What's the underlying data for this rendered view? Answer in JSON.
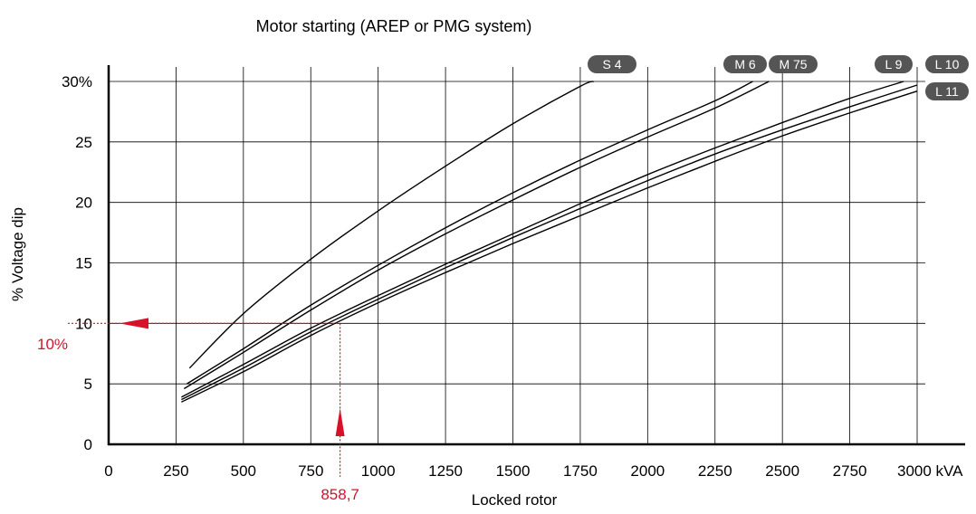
{
  "chart_data": {
    "type": "line",
    "title": "Motor starting (AREP or PMG system)",
    "xlabel": "Locked rotor",
    "ylabel": "% Voltage dip",
    "x_unit": "kVA",
    "xlim": [
      0,
      3000
    ],
    "ylim": [
      0,
      30
    ],
    "x_ticks": [
      0,
      250,
      500,
      750,
      1000,
      1250,
      1500,
      1750,
      2000,
      2250,
      2500,
      2750,
      3000
    ],
    "x_tick_labels": [
      "0",
      "250",
      "500",
      "750",
      "1000",
      "1250",
      "1500",
      "1750",
      "2000",
      "2250",
      "2500",
      "2750",
      "3000 kVA"
    ],
    "y_ticks": [
      0,
      5,
      10,
      15,
      20,
      25,
      30
    ],
    "y_tick_labels": [
      "0",
      "5",
      "10",
      "15",
      "20",
      "25",
      "30%"
    ],
    "grid": true,
    "series": [
      {
        "name": "S 4",
        "x": [
          300,
          500,
          750,
          1000,
          1250,
          1500,
          1750,
          1800
        ],
        "y": [
          6.3,
          10.8,
          15.3,
          19.3,
          23.0,
          26.5,
          29.6,
          30.0
        ]
      },
      {
        "name": "M 6",
        "x": [
          290,
          500,
          750,
          1000,
          1250,
          1500,
          1750,
          2000,
          2250,
          2390
        ],
        "y": [
          5.0,
          7.9,
          11.5,
          14.8,
          17.9,
          20.8,
          23.5,
          26.0,
          28.4,
          30.0
        ]
      },
      {
        "name": "M 75",
        "x": [
          280,
          500,
          750,
          1000,
          1250,
          1500,
          1750,
          2000,
          2250,
          2450
        ],
        "y": [
          4.6,
          7.6,
          11.1,
          14.4,
          17.4,
          20.2,
          22.9,
          25.4,
          27.8,
          30.0
        ]
      },
      {
        "name": "L 9",
        "x": [
          270,
          500,
          750,
          1000,
          1250,
          1500,
          1750,
          2000,
          2250,
          2500,
          2750,
          2950
        ],
        "y": [
          3.9,
          6.6,
          9.6,
          12.3,
          14.9,
          17.4,
          19.9,
          22.3,
          24.5,
          26.6,
          28.6,
          30.0
        ]
      },
      {
        "name": "L 10",
        "x": [
          270,
          500,
          750,
          1000,
          1250,
          1500,
          1750,
          2000,
          2250,
          2500,
          2750,
          3000
        ],
        "y": [
          3.7,
          6.3,
          9.3,
          12.0,
          14.6,
          17.1,
          19.5,
          21.8,
          24.0,
          26.0,
          27.9,
          29.7
        ]
      },
      {
        "name": "L 11",
        "x": [
          270,
          500,
          750,
          1000,
          1250,
          1500,
          1750,
          2000,
          2250,
          2500,
          2750,
          3000
        ],
        "y": [
          3.5,
          6.0,
          9.0,
          11.7,
          14.2,
          16.6,
          18.9,
          21.2,
          23.4,
          25.5,
          27.4,
          29.2
        ]
      }
    ],
    "annotations": {
      "x_value": 858.7,
      "x_label": "858,7",
      "y_value": 10,
      "y_label": "10%",
      "color": "#d8102a"
    },
    "colors": {
      "line": "#000000",
      "grid": "#000000",
      "badge": "#555555",
      "badge_text": "#ffffff",
      "annotation": "#d8102a"
    }
  }
}
